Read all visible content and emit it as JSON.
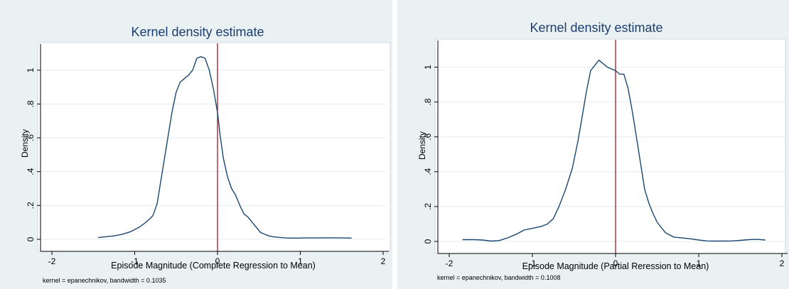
{
  "chart_data": [
    {
      "type": "line",
      "title": "Kernel density estimate",
      "xlabel": "Episode Magnitude (Complete Regression to Mean)",
      "ylabel": "Density",
      "note": "kernel = epanechnikov, bandwidth = 0.1035",
      "xlim": [
        -2,
        2
      ],
      "ylim": [
        0,
        1.1
      ],
      "xticks": [
        -2,
        -1,
        0,
        1,
        2
      ],
      "xtick_labels": [
        "-2",
        "-1",
        "0",
        "1",
        "2"
      ],
      "yticks": [
        0,
        0.2,
        0.4,
        0.6,
        0.8,
        1
      ],
      "ytick_labels": [
        "0",
        ".2",
        ".4",
        ".6",
        ".8",
        "1"
      ],
      "grid": "horizontal",
      "reference_line_x": 0,
      "colors": {
        "line": "#1a476f",
        "reference": "#a0182d",
        "plot_bg": "#ffffff",
        "outer_bg": "#eaf1f3",
        "grid": "#e4ecef"
      },
      "series": [
        {
          "x": [
            -1.44,
            -1.35,
            -1.25,
            -1.15,
            -1.05,
            -0.95,
            -0.88,
            -0.82,
            -0.78,
            -0.73,
            -0.7,
            -0.65,
            -0.6,
            -0.55,
            -0.5,
            -0.45,
            -0.4,
            -0.35,
            -0.3,
            -0.25,
            -0.2,
            -0.15,
            -0.1,
            -0.05,
            0.0,
            0.03,
            0.07,
            0.12,
            0.17,
            0.22,
            0.27,
            0.32,
            0.37,
            0.42,
            0.47,
            0.52,
            0.57,
            0.62,
            0.67,
            0.72,
            0.77,
            0.82,
            0.9,
            0.97,
            1.05,
            1.15,
            1.3,
            1.45,
            1.62
          ],
          "y": [
            0.01,
            0.015,
            0.02,
            0.03,
            0.045,
            0.07,
            0.095,
            0.12,
            0.14,
            0.21,
            0.3,
            0.45,
            0.6,
            0.75,
            0.87,
            0.93,
            0.95,
            0.97,
            1.0,
            1.07,
            1.08,
            1.07,
            1.0,
            0.89,
            0.75,
            0.62,
            0.48,
            0.37,
            0.3,
            0.26,
            0.2,
            0.15,
            0.13,
            0.1,
            0.07,
            0.04,
            0.03,
            0.02,
            0.015,
            0.012,
            0.01,
            0.008,
            0.007,
            0.007,
            0.008,
            0.008,
            0.009,
            0.009,
            0.007
          ]
        }
      ]
    },
    {
      "type": "line",
      "title": "Kernel density estimate",
      "xlabel": "Episode Magnitude (Partial Reression to Mean)",
      "ylabel": "Density",
      "note": "kernel = epanechnikov, bandwidth = 0.1008",
      "xlim": [
        -2,
        2
      ],
      "ylim": [
        0,
        1.1
      ],
      "xticks": [
        -2,
        -1,
        0,
        1,
        2
      ],
      "xtick_labels": [
        "-2",
        "-1",
        "0",
        "1",
        "2"
      ],
      "yticks": [
        0,
        0.2,
        0.4,
        0.6,
        0.8,
        1
      ],
      "ytick_labels": [
        "0",
        ".2",
        ".4",
        ".6",
        ".8",
        "1"
      ],
      "grid": "horizontal",
      "reference_line_x": 0,
      "colors": {
        "line": "#1a476f",
        "reference": "#a0182d",
        "plot_bg": "#ffffff",
        "outer_bg": "#eaf1f3",
        "grid": "#e4ecef"
      },
      "series": [
        {
          "x": [
            -1.84,
            -1.7,
            -1.6,
            -1.5,
            -1.4,
            -1.3,
            -1.2,
            -1.1,
            -1.0,
            -0.9,
            -0.82,
            -0.75,
            -0.68,
            -0.6,
            -0.52,
            -0.45,
            -0.4,
            -0.35,
            -0.3,
            -0.25,
            -0.2,
            -0.15,
            -0.1,
            -0.05,
            0.0,
            0.05,
            0.1,
            0.15,
            0.2,
            0.25,
            0.3,
            0.35,
            0.4,
            0.45,
            0.5,
            0.55,
            0.6,
            0.7,
            0.8,
            0.9,
            1.0,
            1.1,
            1.2,
            1.3,
            1.4,
            1.5,
            1.6,
            1.7,
            1.8
          ],
          "y": [
            0.01,
            0.01,
            0.008,
            0.002,
            0.005,
            0.02,
            0.04,
            0.065,
            0.075,
            0.085,
            0.1,
            0.13,
            0.2,
            0.3,
            0.42,
            0.58,
            0.72,
            0.86,
            0.98,
            1.01,
            1.04,
            1.02,
            1.0,
            0.99,
            0.98,
            0.96,
            0.96,
            0.88,
            0.75,
            0.6,
            0.45,
            0.3,
            0.22,
            0.16,
            0.11,
            0.08,
            0.05,
            0.025,
            0.02,
            0.015,
            0.008,
            0.003,
            0.002,
            0.002,
            0.003,
            0.006,
            0.01,
            0.012,
            0.008
          ]
        }
      ]
    }
  ]
}
